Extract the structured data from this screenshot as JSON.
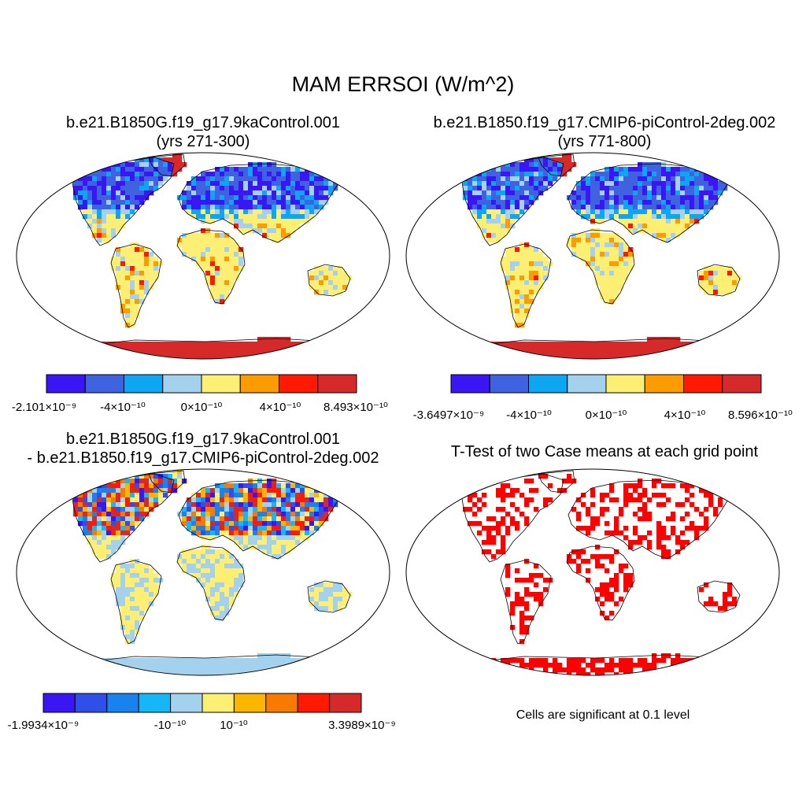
{
  "title": "MAM ERRSOI (W/m^2)",
  "colors": {
    "ocean": "#ffffff",
    "outline": "#000000",
    "significant": "#ff0000"
  },
  "panels": [
    {
      "id": "case1",
      "title_line1": "b.e21.B1850G.f19_g17.9kaControl.001",
      "title_line2": "(yrs 271-300)",
      "colorbar": {
        "colors": [
          "#3a16f4",
          "#3f62e0",
          "#0ea5f2",
          "#a4d2ee",
          "#fdef74",
          "#fd9c00",
          "#fe1a00",
          "#d62a2a"
        ],
        "labels": [
          "-2.101×10⁻⁹",
          "-4×10⁻¹⁰",
          "0×10⁻¹⁰",
          "4×10⁻¹⁰",
          "8.493×10⁻¹⁰"
        ]
      }
    },
    {
      "id": "case2",
      "title_line1": "b.e21.B1850.f19_g17.CMIP6-piControl-2deg.002",
      "title_line2": "(yrs 771-800)",
      "colorbar": {
        "colors": [
          "#3a16f4",
          "#3f62e0",
          "#0ea5f2",
          "#a4d2ee",
          "#fdef74",
          "#fd9c00",
          "#fe1a00",
          "#d62a2a"
        ],
        "labels": [
          "-3.6497×10⁻⁹",
          "-4×10⁻¹⁰",
          "0×10⁻¹⁰",
          "4×10⁻¹⁰",
          "8.596×10⁻¹⁰"
        ]
      }
    },
    {
      "id": "difference",
      "title_line1": "b.e21.B1850G.f19_g17.9kaControl.001",
      "title_line2": "- b.e21.B1850.f19_g17.CMIP6-piControl-2deg.002",
      "colorbar": {
        "colors": [
          "#3a16f4",
          "#2f4fe8",
          "#1a82ee",
          "#16b7f7",
          "#a4d2ee",
          "#fdef74",
          "#fdb600",
          "#f97a00",
          "#fe1a00",
          "#d62a2a"
        ],
        "labels": [
          "-1.9934×10⁻⁹",
          "-10⁻¹⁰",
          "10⁻¹⁰",
          "3.3989×10⁻⁹"
        ]
      }
    },
    {
      "id": "ttest",
      "title_line1": "T-Test of two Case means at each grid point",
      "note": "Cells are significant at 0.1 level"
    }
  ]
}
